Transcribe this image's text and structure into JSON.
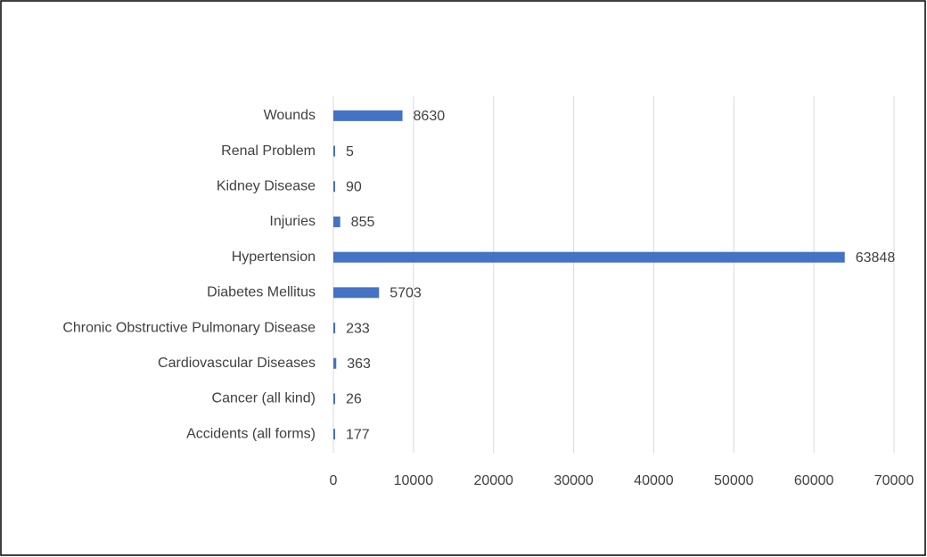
{
  "chart_data": {
    "type": "bar",
    "orientation": "horizontal",
    "categories": [
      "Accidents (all forms)",
      "Cancer (all kind)",
      "Cardiovascular Diseases",
      "Chronic Obstructive Pulmonary Disease",
      "Diabetes Mellitus",
      "Hypertension",
      "Injuries",
      "Kidney Disease",
      "Renal Problem",
      "Wounds"
    ],
    "values": [
      177,
      26,
      363,
      233,
      5703,
      63848,
      855,
      90,
      5,
      8630
    ],
    "color": "#4472c4",
    "xlim": [
      0,
      70000
    ],
    "xticks": [
      0,
      10000,
      20000,
      30000,
      40000,
      50000,
      60000,
      70000
    ],
    "grid": true
  }
}
